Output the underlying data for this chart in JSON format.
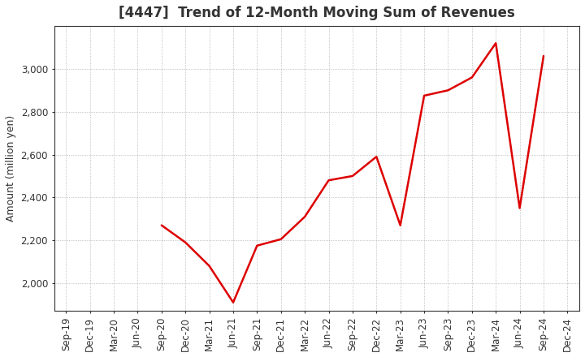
{
  "title": "[4447]  Trend of 12-Month Moving Sum of Revenues",
  "ylabel": "Amount (million yen)",
  "line_color": "#dd0000",
  "background_color": "#ffffff",
  "grid_color": "#999999",
  "x_labels": [
    "Sep-19",
    "Dec-19",
    "Mar-20",
    "Jun-20",
    "Sep-20",
    "Dec-20",
    "Mar-21",
    "Jun-21",
    "Sep-21",
    "Dec-21",
    "Mar-22",
    "Jun-22",
    "Sep-22",
    "Dec-22",
    "Mar-23",
    "Jun-23",
    "Sep-23",
    "Dec-23",
    "Mar-24",
    "Jun-24",
    "Sep-24",
    "Dec-24"
  ],
  "y_values": [
    null,
    null,
    null,
    null,
    2270,
    2190,
    2080,
    1910,
    2175,
    2205,
    2310,
    2480,
    2500,
    2590,
    2270,
    2875,
    2900,
    2960,
    3120,
    2350,
    3060,
    null
  ],
  "ylim": [
    1870,
    3200
  ],
  "yticks": [
    2000,
    2200,
    2400,
    2600,
    2800,
    3000
  ],
  "title_fontsize": 12,
  "label_fontsize": 9,
  "tick_fontsize": 8.5,
  "title_color": "#333333",
  "tick_color": "#333333",
  "line_width": 1.8
}
